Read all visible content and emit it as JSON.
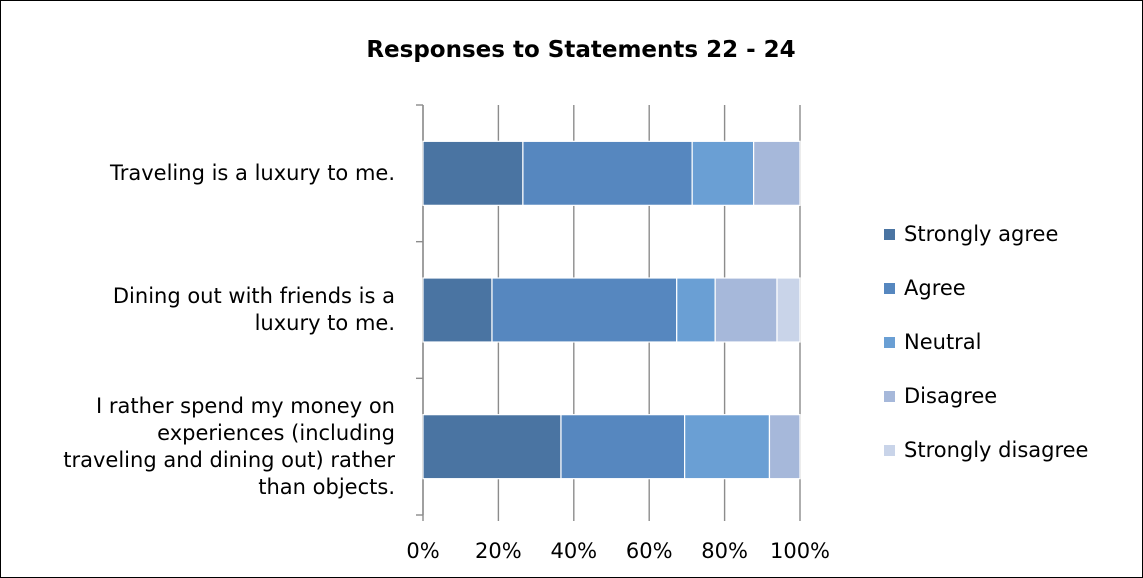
{
  "chart_data": {
    "type": "bar",
    "orientation": "horizontal",
    "stacked": "percent",
    "title": "Responses to Statements 22 - 24",
    "categories": [
      "Traveling is a luxury to me.",
      "Dining out with friends is a luxury to me.",
      "I rather spend my money on experiences (including traveling and dining out) rather than objects."
    ],
    "category_lines": [
      [
        "Traveling is a luxury to me."
      ],
      [
        "Dining out with friends is a",
        "luxury to me."
      ],
      [
        "I rather spend my money on",
        "experiences (including",
        "traveling and dining out) rather",
        "than objects."
      ]
    ],
    "series": [
      {
        "name": "Strongly agree",
        "color": "#4a74a2",
        "values": [
          26.5,
          18.3,
          36.6
        ]
      },
      {
        "name": "Agree",
        "color": "#5687bf",
        "values": [
          44.9,
          49.0,
          32.8
        ]
      },
      {
        "name": "Neutral",
        "color": "#6a9fd4",
        "values": [
          16.3,
          10.2,
          22.5
        ]
      },
      {
        "name": "Disagree",
        "color": "#a6b8da",
        "values": [
          12.3,
          16.4,
          8.1
        ]
      },
      {
        "name": "Strongly disagree",
        "color": "#c9d4e9",
        "values": [
          0.0,
          6.1,
          0.0
        ]
      }
    ],
    "xlim": [
      0,
      100
    ],
    "xticks": [
      "0%",
      "20%",
      "40%",
      "60%",
      "80%",
      "100%"
    ],
    "grid": "vertical",
    "legend_position": "right"
  }
}
